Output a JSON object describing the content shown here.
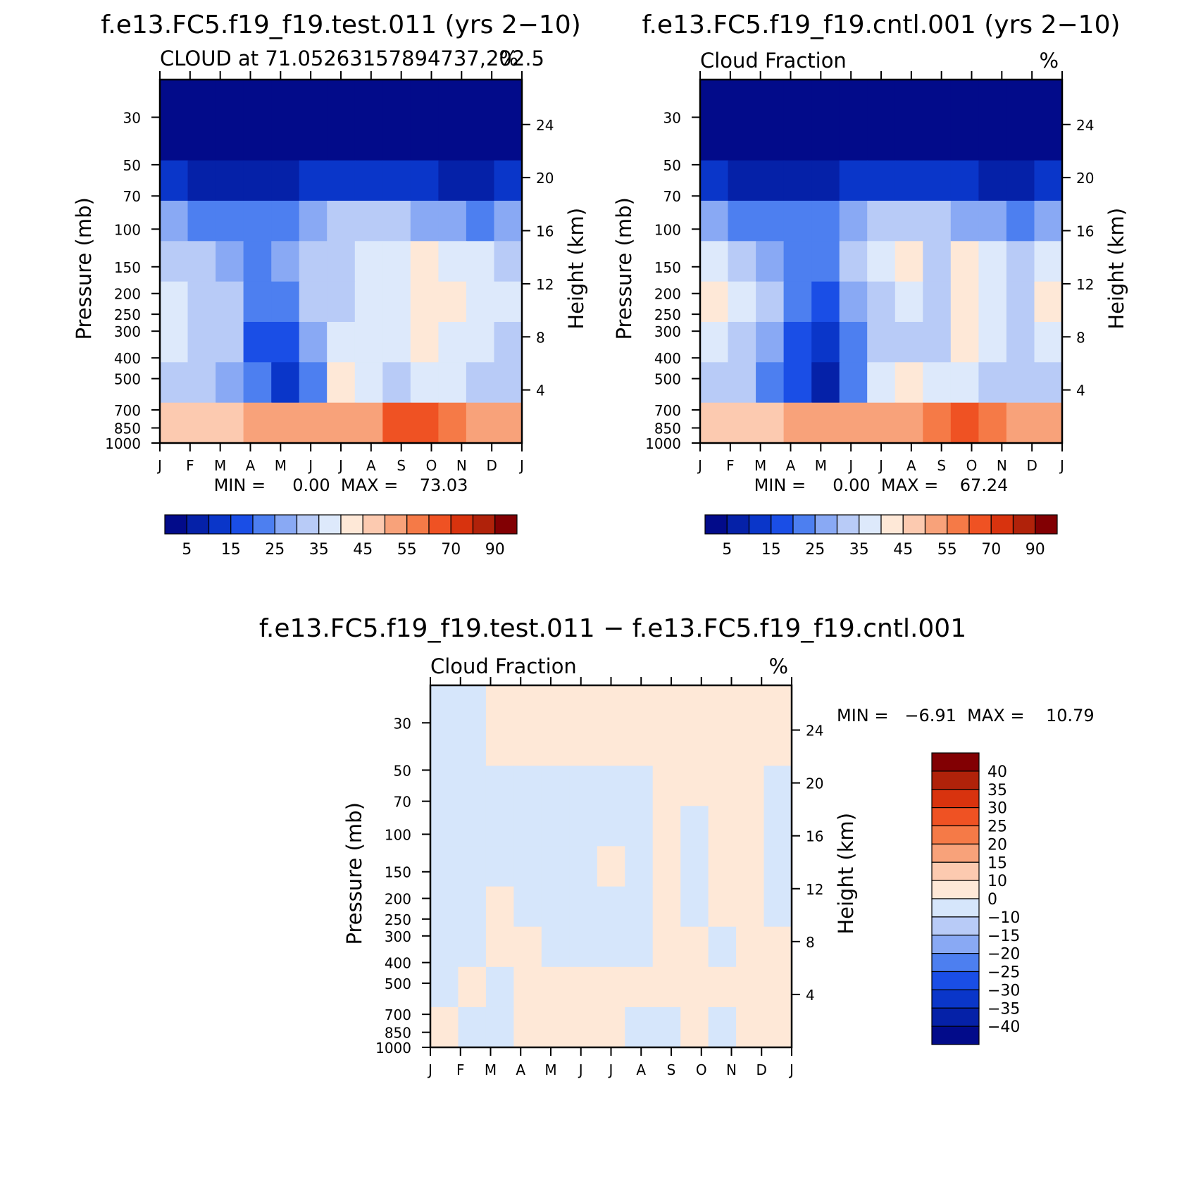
{
  "chart_data": [
    {
      "type": "heatmap",
      "title": "f.e13.FC5.f19_f19.test.011 (yrs 2−10)",
      "subtitle": "CLOUD at 71.05263157894737,202.5",
      "units": "%",
      "ylabel_left": "Pressure (mb)",
      "ylabel_right": "Height (km)",
      "x_ticklabels": [
        "J",
        "F",
        "M",
        "A",
        "M",
        "J",
        "J",
        "A",
        "S",
        "O",
        "N",
        "D",
        "J"
      ],
      "y_ticklabels_left": [
        "30",
        "50",
        "70",
        "100",
        "150",
        "200",
        "250",
        "300",
        "400",
        "500",
        "700",
        "850",
        "1000"
      ],
      "y_ticklabels_right": [
        "24",
        "20",
        "16",
        "12",
        "8",
        "4"
      ],
      "stats_text": "MIN =     0.00  MAX =    73.03",
      "colorbar_labels": [
        "5",
        "15",
        "25",
        "35",
        "45",
        "55",
        "70",
        "90"
      ],
      "colorbar_colors": [
        "#020b8a",
        "#0521a8",
        "#0a36c9",
        "#1a4ee6",
        "#4d7ff0",
        "#89a9f4",
        "#b8cbf7",
        "#dde9fb",
        "#fee8d7",
        "#fccab0",
        "#f8a27a",
        "#f57a47",
        "#ef5223",
        "#d8330e",
        "#b0220a",
        "#820003"
      ],
      "min": 0.0,
      "max": 73.03,
      "z_rows_top_to_bottom": [
        [
          2,
          2,
          2,
          2,
          2,
          2,
          2,
          2,
          2,
          2,
          2,
          2,
          2
        ],
        [
          2,
          2,
          2,
          2,
          2,
          2,
          2,
          2,
          2,
          2,
          2,
          2,
          2
        ],
        [
          12,
          8,
          6,
          6,
          8,
          10,
          10,
          10,
          10,
          10,
          8,
          6,
          10
        ],
        [
          28,
          22,
          20,
          20,
          22,
          26,
          30,
          30,
          30,
          28,
          26,
          22,
          28
        ],
        [
          34,
          30,
          26,
          24,
          26,
          32,
          34,
          36,
          36,
          40,
          38,
          36,
          34
        ],
        [
          38,
          34,
          30,
          24,
          22,
          30,
          34,
          36,
          38,
          44,
          40,
          36,
          36
        ],
        [
          36,
          34,
          32,
          18,
          16,
          28,
          38,
          36,
          38,
          42,
          38,
          36,
          34
        ],
        [
          34,
          32,
          26,
          20,
          10,
          24,
          42,
          38,
          34,
          36,
          36,
          34,
          30
        ],
        [
          48,
          46,
          48,
          50,
          50,
          50,
          50,
          54,
          60,
          62,
          58,
          52,
          50
        ]
      ]
    },
    {
      "type": "heatmap",
      "title": "f.e13.FC5.f19_f19.cntl.001 (yrs 2−10)",
      "subtitle": "Cloud Fraction",
      "units": "%",
      "ylabel_left": "Pressure (mb)",
      "ylabel_right": "Height (km)",
      "x_ticklabels": [
        "J",
        "F",
        "M",
        "A",
        "M",
        "J",
        "J",
        "A",
        "S",
        "O",
        "N",
        "D",
        "J"
      ],
      "y_ticklabels_left": [
        "30",
        "50",
        "70",
        "100",
        "150",
        "200",
        "250",
        "300",
        "400",
        "500",
        "700",
        "850",
        "1000"
      ],
      "y_ticklabels_right": [
        "24",
        "20",
        "16",
        "12",
        "8",
        "4"
      ],
      "stats_text": "MIN =     0.00  MAX =    67.24",
      "colorbar_labels": [
        "5",
        "15",
        "25",
        "35",
        "45",
        "55",
        "70",
        "90"
      ],
      "colorbar_colors": [
        "#020b8a",
        "#0521a8",
        "#0a36c9",
        "#1a4ee6",
        "#4d7ff0",
        "#89a9f4",
        "#b8cbf7",
        "#dde9fb",
        "#fee8d7",
        "#fccab0",
        "#f8a27a",
        "#f57a47",
        "#ef5223",
        "#d8330e",
        "#b0220a",
        "#820003"
      ],
      "min": 0.0,
      "max": 67.24,
      "z_rows_top_to_bottom": [
        [
          2,
          2,
          2,
          2,
          2,
          2,
          2,
          2,
          2,
          2,
          2,
          2,
          2
        ],
        [
          2,
          2,
          2,
          2,
          2,
          2,
          2,
          2,
          2,
          2,
          2,
          2,
          2
        ],
        [
          12,
          8,
          6,
          6,
          8,
          10,
          10,
          12,
          10,
          10,
          8,
          6,
          10
        ],
        [
          28,
          22,
          20,
          20,
          22,
          26,
          30,
          34,
          30,
          28,
          26,
          22,
          28
        ],
        [
          36,
          34,
          28,
          24,
          24,
          30,
          36,
          40,
          34,
          40,
          38,
          34,
          36
        ],
        [
          42,
          36,
          30,
          22,
          18,
          28,
          34,
          36,
          34,
          44,
          38,
          34,
          42
        ],
        [
          36,
          34,
          28,
          18,
          12,
          24,
          34,
          34,
          34,
          40,
          36,
          34,
          36
        ],
        [
          34,
          32,
          24,
          16,
          8,
          20,
          38,
          42,
          36,
          36,
          34,
          32,
          30
        ],
        [
          48,
          46,
          48,
          50,
          50,
          50,
          50,
          52,
          58,
          60,
          58,
          52,
          50
        ]
      ]
    },
    {
      "type": "heatmap",
      "title": "f.e13.FC5.f19_f19.test.011 − f.e13.FC5.f19_f19.cntl.001",
      "subtitle": "Cloud Fraction",
      "units": "%",
      "ylabel_left": "Pressure (mb)",
      "ylabel_right": "Height (km)",
      "x_ticklabels": [
        "J",
        "F",
        "M",
        "A",
        "M",
        "J",
        "J",
        "A",
        "S",
        "O",
        "N",
        "D",
        "J"
      ],
      "y_ticklabels_left": [
        "30",
        "50",
        "70",
        "100",
        "150",
        "200",
        "250",
        "300",
        "400",
        "500",
        "700",
        "850",
        "1000"
      ],
      "y_ticklabels_right": [
        "24",
        "20",
        "16",
        "12",
        "8",
        "4"
      ],
      "stats_text": "MIN =   −6.91  MAX =    10.79",
      "colorbar_labels": [
        "40",
        "35",
        "30",
        "25",
        "20",
        "15",
        "10",
        "0",
        "−10",
        "−15",
        "−20",
        "−25",
        "−30",
        "−35",
        "−40"
      ],
      "colorbar_colors": [
        "#820003",
        "#b0220a",
        "#d8330e",
        "#ef5223",
        "#f57a47",
        "#f8a27a",
        "#fccab0",
        "#fee8d7",
        "#d6e6fb",
        "#b8cbf7",
        "#89a9f4",
        "#4d7ff0",
        "#1a4ee6",
        "#0a36c9",
        "#0521a8",
        "#020b8a"
      ],
      "min": -6.91,
      "max": 10.79,
      "z_rows_top_to_bottom": [
        [
          -1,
          -1,
          2,
          2,
          2,
          2,
          2,
          2,
          2,
          2,
          2,
          2,
          2
        ],
        [
          -1,
          -1,
          2,
          2,
          2,
          2,
          2,
          2,
          2,
          2,
          2,
          2,
          2
        ],
        [
          -1,
          -1,
          -1,
          -1,
          -1,
          -1,
          -1,
          -1,
          2,
          2,
          2,
          2,
          -1
        ],
        [
          -1,
          -1,
          -1,
          -1,
          -1,
          -1,
          -1,
          -1,
          2,
          -1,
          2,
          2,
          -1
        ],
        [
          -1,
          -1,
          -1,
          -1,
          -1,
          -1,
          2,
          -1,
          2,
          -1,
          2,
          2,
          -1
        ],
        [
          -1,
          -1,
          2,
          -1,
          -1,
          -1,
          -1,
          -1,
          2,
          -1,
          2,
          2,
          -1
        ],
        [
          -1,
          -1,
          2,
          2,
          -1,
          -1,
          -1,
          -1,
          2,
          2,
          -1,
          2,
          2
        ],
        [
          -1,
          2,
          -1,
          2,
          2,
          2,
          2,
          2,
          2,
          2,
          2,
          2,
          2
        ],
        [
          2,
          -1,
          -1,
          2,
          2,
          2,
          2,
          -1,
          -1,
          2,
          -1,
          2,
          2
        ]
      ]
    }
  ]
}
